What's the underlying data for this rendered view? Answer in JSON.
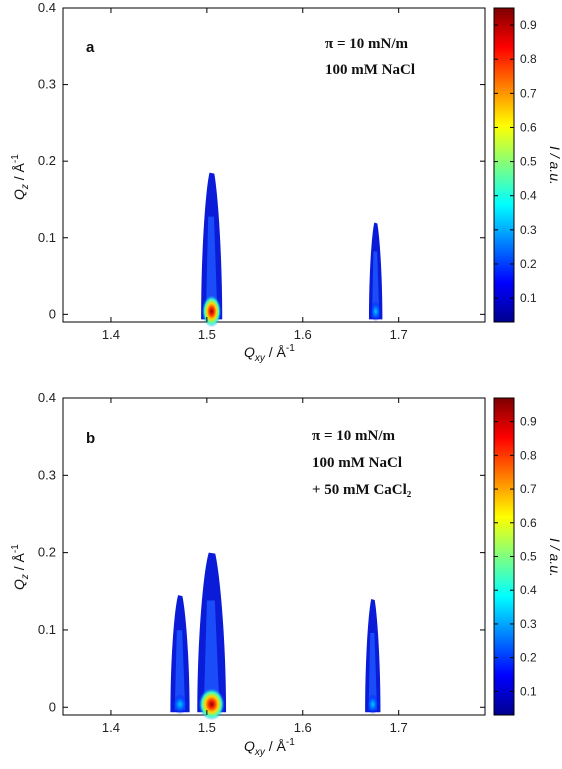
{
  "colors": {
    "low": "#00008f",
    "high": "#7f0000",
    "axis": "#000000"
  },
  "chart_data": [
    {
      "type": "heatmap",
      "panel_label": "a",
      "annotations": [
        "π = 10 mN/m",
        "100 mM NaCl"
      ],
      "xlabel": {
        "main": "Q",
        "sub": "xy",
        "unit": " / Å",
        "sup": "-1"
      },
      "ylabel": {
        "main": "Q",
        "sub": "z",
        "unit": " / Å",
        "sup": "-1"
      },
      "colorbar_label": "I / a.u.",
      "xlim": [
        1.35,
        1.79
      ],
      "ylim": [
        -0.01,
        0.4
      ],
      "x_ticks": [
        "1.4",
        "1.5",
        "1.6",
        "1.7"
      ],
      "y_ticks": [
        "0",
        "0.1",
        "0.2",
        "0.3",
        "0.4"
      ],
      "colorbar_ticks": [
        "0.1",
        "0.2",
        "0.3",
        "0.4",
        "0.5",
        "0.6",
        "0.7",
        "0.8",
        "0.9"
      ],
      "colorbar_range": [
        0.03,
        0.95
      ],
      "peaks": [
        {
          "qxy": 1.505,
          "qz_max": 0.185,
          "width": 0.022,
          "peak_intensity": 0.95
        },
        {
          "qxy": 1.676,
          "qz_max": 0.12,
          "width": 0.014,
          "peak_intensity": 0.15
        }
      ]
    },
    {
      "type": "heatmap",
      "panel_label": "b",
      "annotations": [
        "π = 10 mN/m",
        "100 mM NaCl",
        "+ 50 mM CaCl₂"
      ],
      "xlabel": {
        "main": "Q",
        "sub": "xy",
        "unit": " / Å",
        "sup": "-1"
      },
      "ylabel": {
        "main": "Q",
        "sub": "z",
        "unit": " / Å",
        "sup": "-1"
      },
      "colorbar_label": "I / a.u.",
      "xlim": [
        1.35,
        1.79
      ],
      "ylim": [
        -0.01,
        0.4
      ],
      "x_ticks": [
        "1.4",
        "1.5",
        "1.6",
        "1.7"
      ],
      "y_ticks": [
        "0",
        "0.1",
        "0.2",
        "0.3",
        "0.4"
      ],
      "colorbar_ticks": [
        "0.1",
        "0.2",
        "0.3",
        "0.4",
        "0.5",
        "0.6",
        "0.7",
        "0.8",
        "0.9"
      ],
      "colorbar_range": [
        0.03,
        0.97
      ],
      "peaks": [
        {
          "qxy": 1.472,
          "qz_max": 0.145,
          "width": 0.02,
          "peak_intensity": 0.15
        },
        {
          "qxy": 1.505,
          "qz_max": 0.2,
          "width": 0.03,
          "peak_intensity": 0.97
        },
        {
          "qxy": 1.673,
          "qz_max": 0.14,
          "width": 0.016,
          "peak_intensity": 0.2
        }
      ]
    }
  ]
}
